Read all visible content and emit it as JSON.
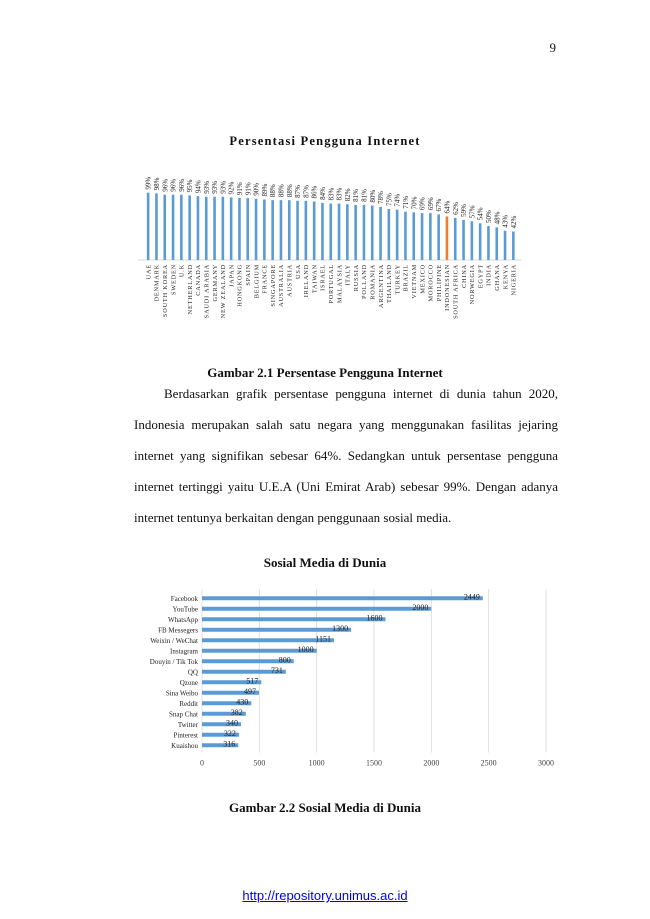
{
  "page": {
    "number": "9"
  },
  "figure1": {
    "chart_title": "Persentasi Pengguna Internet",
    "caption": "Gambar 2.1 Persentase Pengguna Internet"
  },
  "paragraph": "Berdasarkan grafik persentase pengguna internet di dunia tahun 2020, Indonesia merupakan salah satu negara yang menggunakan fasilitas jejaring internet yang signifikan sebesar 64%. Sedangkan untuk persentase pengguna internet tertinggi yaitu U.E.A (Uni Emirat Arab) sebesar 99%. Dengan adanya internet tentunya berkaitan dengan penggunaan sosial media.",
  "figure2": {
    "chart_title": "Sosial Media di Dunia",
    "caption": "Gambar 2.2 Sosial Media di Dunia"
  },
  "footer": {
    "link": "http://repository.unimus.ac.id"
  },
  "colors": {
    "bar": "#5b9bd5",
    "highlight": "#ed7d31",
    "grid": "#d9d9d9"
  },
  "chart_data": [
    {
      "type": "bar",
      "title": "Persentasi Pengguna Internet",
      "categories": [
        "UAE",
        "DENMARK",
        "SOUTH KOREA",
        "SWEDEN",
        "U.K",
        "NETHERLAND",
        "CANADA",
        "SAUDI ARABIA",
        "GERMANY",
        "NEW ZEALAND",
        "JAPAN",
        "HONGKONG",
        "SPAIN",
        "BELGIUM",
        "FRANCE",
        "SINGAPORE",
        "AUSTRALIA",
        "AUSTRIA",
        "USA",
        "IRELAND",
        "TAIWAN",
        "ISRAEL",
        "PORTUGAL",
        "MALAYSIA",
        "ITALY",
        "RUSSIA",
        "POLLAND",
        "ROMANIA",
        "ARGENTINA",
        "THAILAND",
        "TURKEY",
        "BRAZIL",
        "VIETNAM",
        "MEXICO",
        "MOROCCO",
        "PHILIPINE",
        "INDONESIAN",
        "SOUTH AFRICA",
        "CHINA",
        "NORWEGIA",
        "EGYPT",
        "INDIA",
        "GHANA",
        "KENYA",
        "NIGERIA"
      ],
      "values": [
        99,
        98,
        96,
        96,
        96,
        95,
        94,
        93,
        93,
        93,
        92,
        91,
        91,
        90,
        89,
        88,
        88,
        88,
        87,
        87,
        86,
        84,
        83,
        83,
        82,
        81,
        81,
        80,
        78,
        75,
        74,
        71,
        70,
        69,
        69,
        67,
        64,
        62,
        59,
        57,
        54,
        50,
        48,
        43,
        42
      ],
      "value_labels": [
        "99%",
        "98%",
        "96%",
        "96%",
        "96%",
        "95%",
        "94%",
        "93%",
        "93%",
        "93%",
        "92%",
        "91%",
        "91%",
        "90%",
        "89%",
        "88%",
        "88%",
        "88%",
        "87%",
        "87%",
        "86%",
        "84%",
        "83%",
        "83%",
        "82%",
        "81%",
        "81%",
        "80%",
        "78%",
        "75%",
        "74%",
        "71%",
        "70%",
        "69%",
        "69%",
        "67%",
        "64%",
        "62%",
        "59%",
        "57%",
        "54%",
        "50%",
        "48%",
        "43%",
        "42%"
      ],
      "highlight_category": "INDONESIAN",
      "ylim": [
        0,
        100
      ]
    },
    {
      "type": "bar",
      "orientation": "horizontal",
      "title": "Sosial Media di Dunia",
      "categories": [
        "Facebook",
        "YouTube",
        "WhatsApp",
        "FB Messegers",
        "Weixin / WeChat",
        "Instagram",
        "Douyin / Tik Tok",
        "QQ",
        "Qzone",
        "Sina Weibo",
        "Reddit",
        "Snap Chat",
        "Twitter",
        "Pinterest",
        "Kuaishou"
      ],
      "values": [
        2449,
        2000,
        1600,
        1300,
        1151,
        1000,
        800,
        731,
        517,
        497,
        430,
        382,
        340,
        322,
        316
      ],
      "value_labels": [
        "2449",
        "2000",
        "1600",
        "1300",
        "1151",
        "1000",
        "800",
        "731",
        "517",
        "497",
        "430",
        "382",
        "340",
        "322",
        "316"
      ],
      "xlim": [
        0,
        3000
      ],
      "xticks": [
        "0",
        "500",
        "1000",
        "1500",
        "2000",
        "2500",
        "3000"
      ],
      "grid": true
    }
  ]
}
